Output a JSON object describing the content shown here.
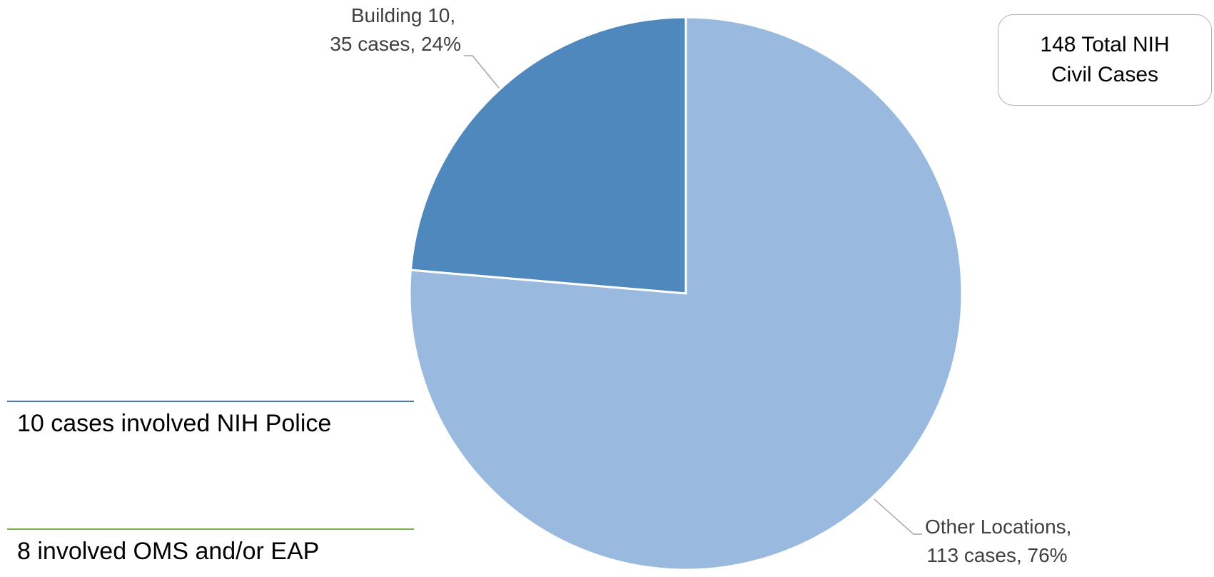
{
  "chart_data": {
    "type": "pie",
    "title": "",
    "slices": [
      {
        "label": "Building 10",
        "value": 35,
        "percent": 24,
        "color": "#4f88bc",
        "label_line1": "Building 10,",
        "label_line2": "35 cases, 24%"
      },
      {
        "label": "Other Locations",
        "value": 113,
        "percent": 76,
        "color": "#99b9df",
        "label_line1": "Other Locations,",
        "label_line2": "113 cases, 76%"
      }
    ],
    "total_box": {
      "line1": "148 Total NIH",
      "line2": "Civil Cases"
    },
    "notes": [
      {
        "text": "10 cases involved NIH Police",
        "color": "#4a78b8"
      },
      {
        "text": "8 involved OMS and/or EAP",
        "color": "#77b04a"
      }
    ]
  }
}
